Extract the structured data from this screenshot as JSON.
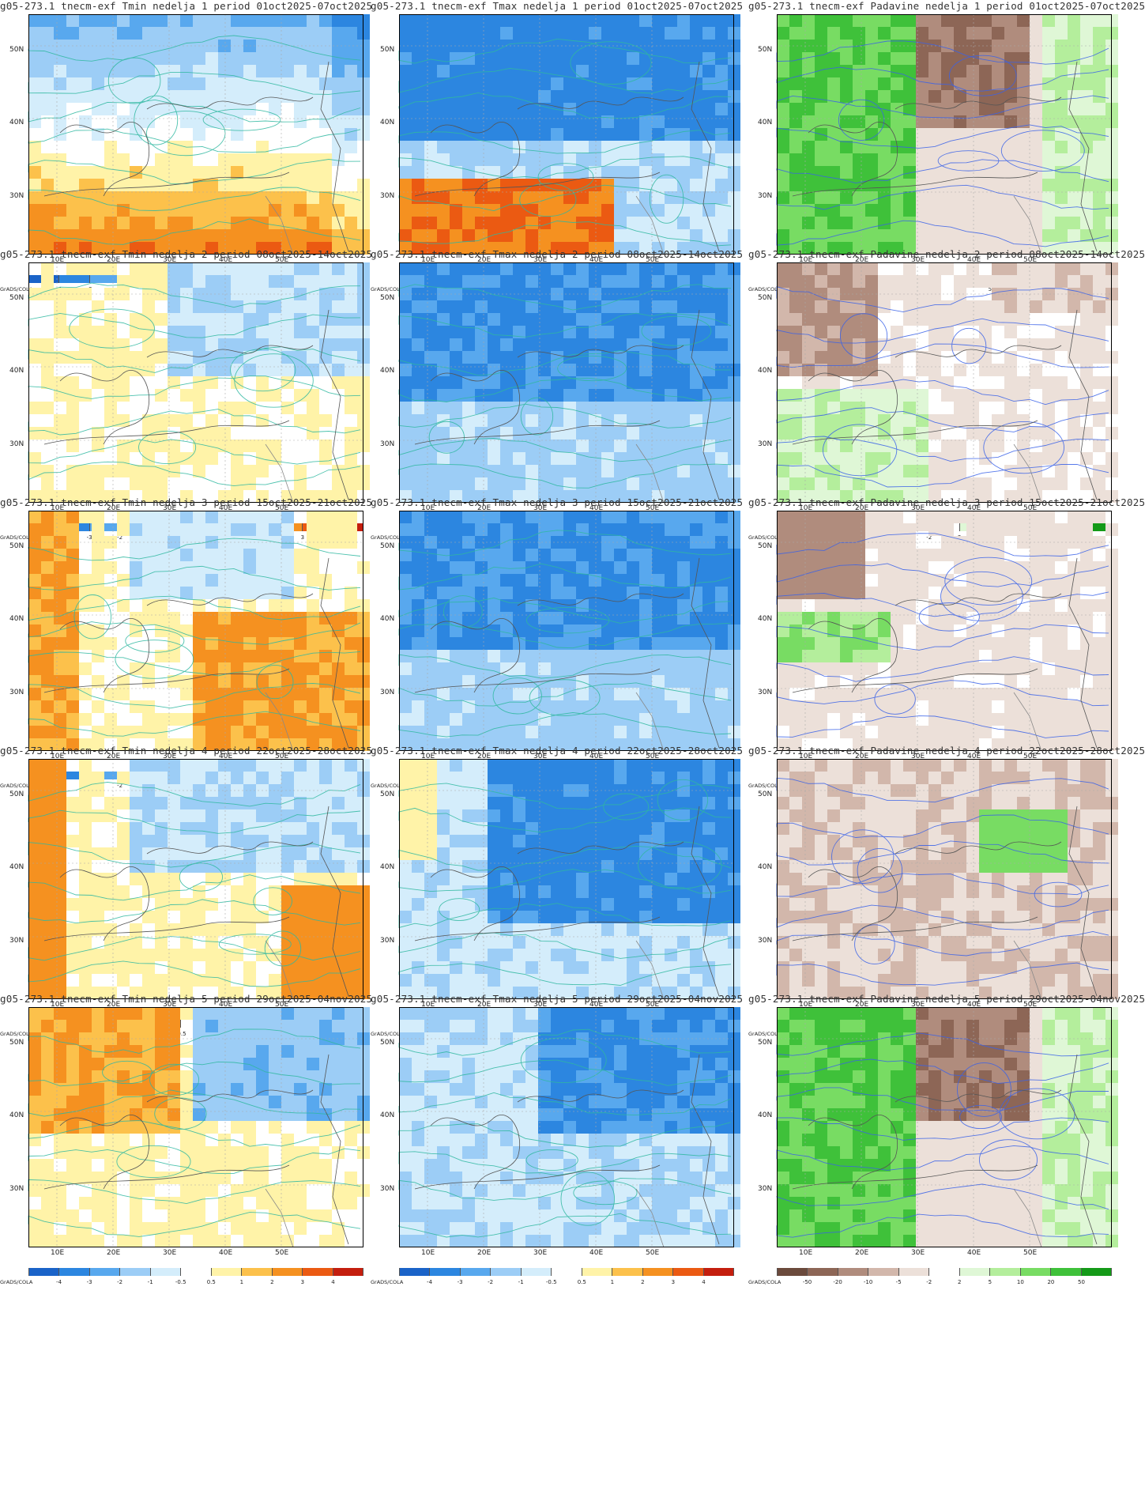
{
  "variables": {
    "tmin": {
      "name": "Tmin",
      "palette": [
        "#1a63c8",
        "#2c86e0",
        "#58a8ee",
        "#9ccdf6",
        "#d4edfb",
        "#ffffff",
        "#fff3a8",
        "#fcc14b",
        "#f59120",
        "#eb5a12",
        "#c41e0e"
      ],
      "ticks": [
        "-4",
        "-3",
        "-2",
        "-1",
        "-0.5",
        "0.5",
        "1",
        "2",
        "3",
        "4"
      ],
      "contour_color": "#2fb8a0"
    },
    "tmax": {
      "name": "Tmax",
      "palette": [
        "#1a63c8",
        "#2c86e0",
        "#58a8ee",
        "#9ccdf6",
        "#d4edfb",
        "#ffffff",
        "#fff3a8",
        "#fcc14b",
        "#f59120",
        "#eb5a12",
        "#c41e0e"
      ],
      "ticks": [
        "-4",
        "-3",
        "-2",
        "-1",
        "-0.5",
        "0.5",
        "1",
        "2",
        "3",
        "4"
      ],
      "contour_color": "#2fb8a0"
    },
    "pad": {
      "name": "Padavine",
      "palette": [
        "#6b4a3c",
        "#8d6656",
        "#b08c7d",
        "#d2b7ab",
        "#ece0d9",
        "#ffffff",
        "#dff7d6",
        "#b4ee9c",
        "#78dc63",
        "#3fc13a",
        "#149a18"
      ],
      "ticks": [
        "-50",
        "-20",
        "-10",
        "-5",
        "-2",
        "2",
        "5",
        "10",
        "20",
        "50"
      ],
      "contour_color": "#3a62e8"
    }
  },
  "grads_label": "GrADS/COLA",
  "lat_labels": [
    "50N",
    "40N",
    "30N"
  ],
  "lon_labels": [
    "10E",
    "20E",
    "30E",
    "40E",
    "50E"
  ],
  "panels": [
    {
      "title": "g05-273.1 tnecm-exf Tmin nedelja 1 period 01oct2025-07oct2025",
      "var": "tmin",
      "col": 0,
      "row": 0,
      "signal": "warm_south"
    },
    {
      "title": "g05-273.1 tnecm-exf Tmax nedelja 1 period 01oct2025-07oct2025",
      "var": "tmax",
      "col": 1,
      "row": 0,
      "signal": "cold_north_warm_south"
    },
    {
      "title": "g05-273.1 tnecm-exf Padavine nedelja 1 period 01oct2025-07oct2025",
      "var": "pad",
      "col": 2,
      "row": 0,
      "signal": "wet_west_dry_east"
    },
    {
      "title": "g05-273.1 tnecm-exf Tmin nedelja 2 period 08oct2025-14oct2025",
      "var": "tmin",
      "col": 0,
      "row": 1,
      "signal": "mild"
    },
    {
      "title": "g05-273.1 tnecm-exf Tmax nedelja 2 period 08oct2025-14oct2025",
      "var": "tmax",
      "col": 1,
      "row": 1,
      "signal": "cold"
    },
    {
      "title": "g05-273.1 tnecm-exf Padavine nedelja 2 period 08oct2025-14oct2025",
      "var": "pad",
      "col": 2,
      "row": 1,
      "signal": "dry_mixed"
    },
    {
      "title": "g05-273.1 tnecm-exf Tmin nedelja 3 period 15oct2025-21oct2025",
      "var": "tmin",
      "col": 0,
      "row": 2,
      "signal": "warm_sw_se"
    },
    {
      "title": "g05-273.1 tnecm-exf Tmax nedelja 3 period 15oct2025-21oct2025",
      "var": "tmax",
      "col": 1,
      "row": 2,
      "signal": "cold"
    },
    {
      "title": "g05-273.1 tnecm-exf Padavine nedelja 3 period 15oct2025-21oct2025",
      "var": "pad",
      "col": 2,
      "row": 2,
      "signal": "dry_nw_wet_center"
    },
    {
      "title": "g05-273.1 tnecm-exf Tmin nedelja 4 period 22oct2025-28oct2025",
      "var": "tmin",
      "col": 0,
      "row": 3,
      "signal": "warm_west_east"
    },
    {
      "title": "g05-273.1 tnecm-exf Tmax nedelja 4 period 22oct2025-28oct2025",
      "var": "tmax",
      "col": 1,
      "row": 3,
      "signal": "cold_east"
    },
    {
      "title": "g05-273.1 tnecm-exf Padavine nedelja 4 period 22oct2025-28oct2025",
      "var": "pad",
      "col": 2,
      "row": 3,
      "signal": "dry_wet_east"
    },
    {
      "title": "g05-273.1 tnecm-exf Tmin nedelja 5 period 29oct2025-04nov2025",
      "var": "tmin",
      "col": 0,
      "row": 4,
      "signal": "warm_west_cold_east"
    },
    {
      "title": "g05-273.1 tnecm-exf Tmax nedelja 5 period 29oct2025-04nov2025",
      "var": "tmax",
      "col": 1,
      "row": 4,
      "signal": "cold_ne"
    },
    {
      "title": "g05-273.1 tnecm-exf Padavine nedelja 5 period 29oct2025-04nov2025",
      "var": "pad",
      "col": 2,
      "row": 4,
      "signal": "wet_west_dry_east"
    }
  ]
}
